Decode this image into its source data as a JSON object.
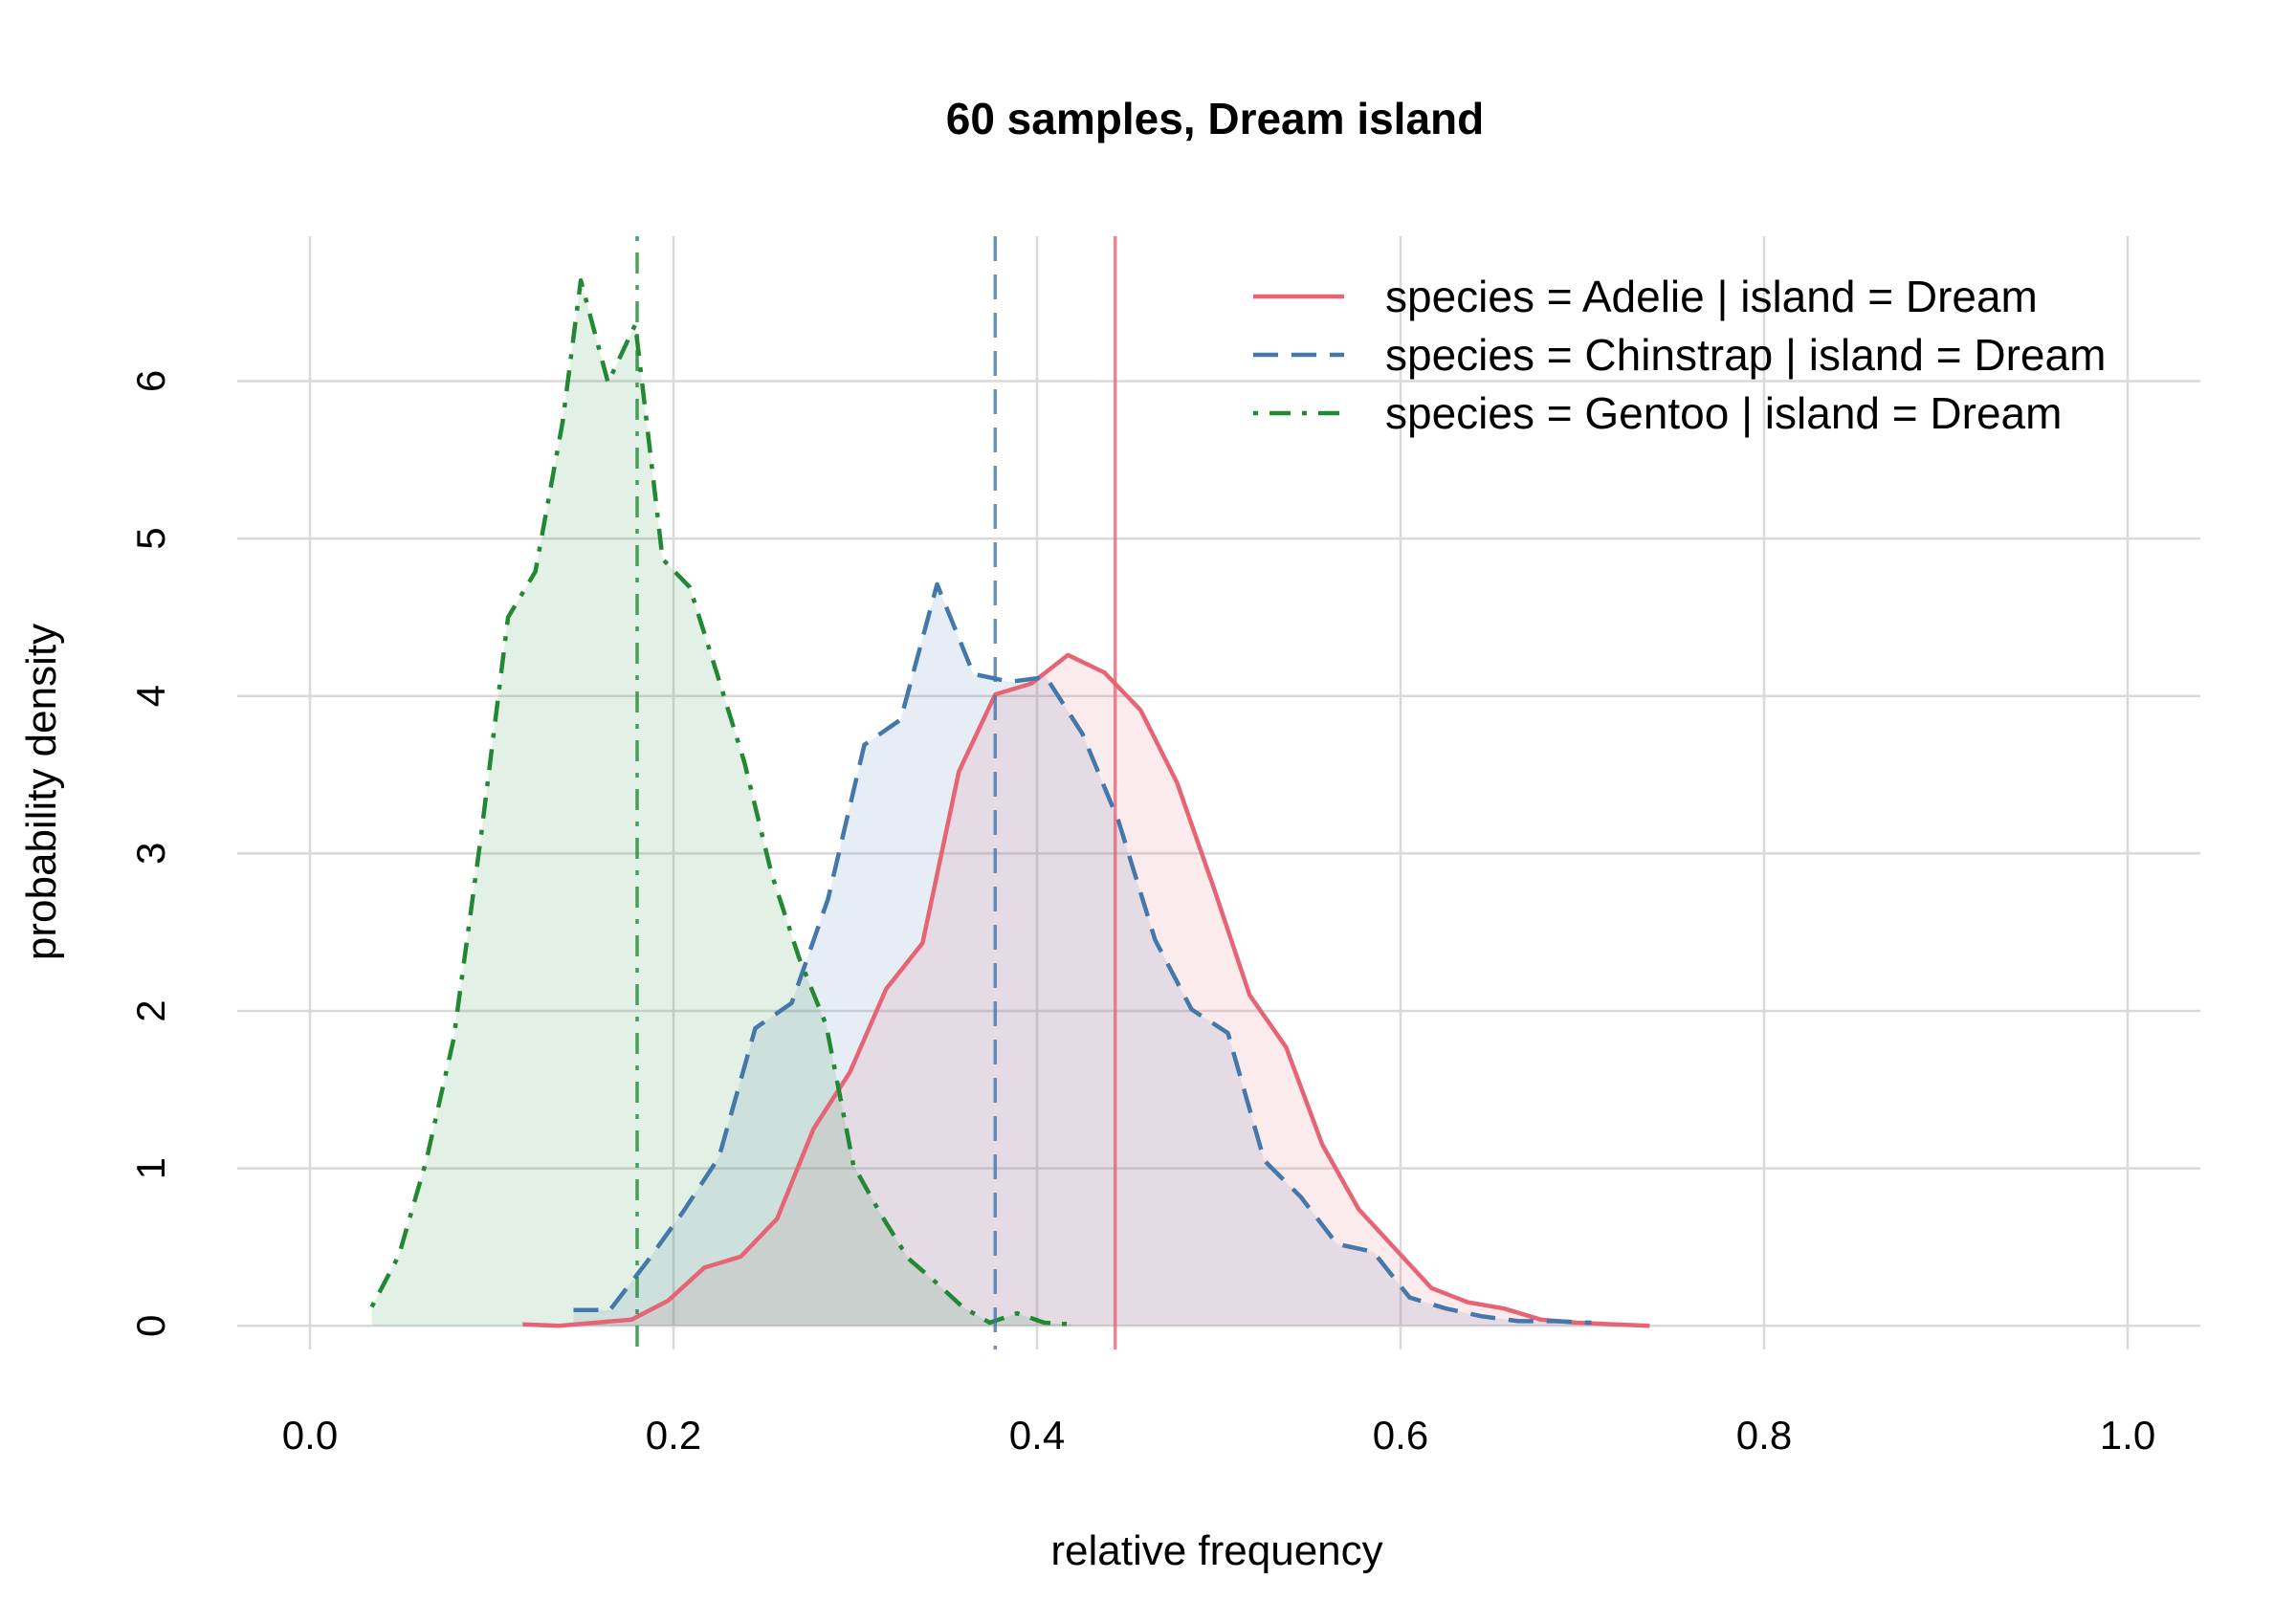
{
  "chart_data": {
    "type": "area",
    "title": "60 samples, Dream island",
    "xlabel": "relative frequency",
    "ylabel": "probability density",
    "xlim": [
      -0.04,
      1.04
    ],
    "ylim": [
      -0.15,
      6.92
    ],
    "x_ticks": [
      "0.0",
      "0.2",
      "0.4",
      "0.6",
      "0.8",
      "1.0"
    ],
    "y_ticks": [
      "0",
      "1",
      "2",
      "3",
      "4",
      "5",
      "6"
    ],
    "grid": true,
    "legend_position": "top-right",
    "series": [
      {
        "name": "species = Adelie | island = Dream",
        "color": "#E66575",
        "line_style": "solid",
        "reference_x": 0.443,
        "x": [
          0.117,
          0.137,
          0.157,
          0.177,
          0.197,
          0.217,
          0.237,
          0.257,
          0.277,
          0.297,
          0.317,
          0.337,
          0.357,
          0.377,
          0.397,
          0.417,
          0.437,
          0.457,
          0.477,
          0.497,
          0.517,
          0.537,
          0.557,
          0.577,
          0.597,
          0.617,
          0.637,
          0.657,
          0.677,
          0.697,
          0.717,
          0.737
        ],
        "y": [
          0.01,
          0.0,
          0.02,
          0.04,
          0.16,
          0.37,
          0.44,
          0.68,
          1.25,
          1.61,
          2.14,
          2.43,
          3.52,
          4.01,
          4.08,
          4.26,
          4.15,
          3.91,
          3.45,
          2.79,
          2.1,
          1.77,
          1.15,
          0.74,
          0.49,
          0.24,
          0.15,
          0.11,
          0.04,
          0.02,
          0.01,
          0.0
        ]
      },
      {
        "name": "species = Chinstrap | island = Dream",
        "color": "#4477AA",
        "line_style": "dashed",
        "reference_x": 0.377,
        "x": [
          0.145,
          0.165,
          0.185,
          0.205,
          0.225,
          0.245,
          0.265,
          0.285,
          0.305,
          0.325,
          0.345,
          0.365,
          0.385,
          0.405,
          0.425,
          0.445,
          0.465,
          0.485,
          0.505,
          0.525,
          0.545,
          0.565,
          0.585,
          0.605,
          0.625,
          0.645,
          0.665,
          0.685,
          0.705
        ],
        "y": [
          0.1,
          0.1,
          0.4,
          0.72,
          1.07,
          1.89,
          2.05,
          2.71,
          3.69,
          3.85,
          4.71,
          4.14,
          4.09,
          4.12,
          3.76,
          3.2,
          2.45,
          2.01,
          1.86,
          1.05,
          0.82,
          0.52,
          0.47,
          0.18,
          0.11,
          0.06,
          0.03,
          0.03,
          0.02
        ]
      },
      {
        "name": "species = Gentoo | island = Dream",
        "color": "#228833",
        "line_style": "dotdash",
        "reference_x": 0.18,
        "x": [
          0.034,
          0.049,
          0.064,
          0.079,
          0.094,
          0.109,
          0.124,
          0.139,
          0.149,
          0.164,
          0.179,
          0.194,
          0.209,
          0.224,
          0.239,
          0.254,
          0.269,
          0.284,
          0.299,
          0.314,
          0.329,
          0.344,
          0.359,
          0.374,
          0.389,
          0.404,
          0.419
        ],
        "y": [
          0.12,
          0.45,
          1.05,
          1.82,
          3.1,
          4.5,
          4.79,
          5.74,
          6.64,
          5.99,
          6.36,
          4.87,
          4.69,
          4.14,
          3.58,
          2.87,
          2.34,
          1.91,
          1.02,
          0.71,
          0.43,
          0.28,
          0.12,
          0.02,
          0.08,
          0.02,
          0.01
        ]
      }
    ]
  }
}
